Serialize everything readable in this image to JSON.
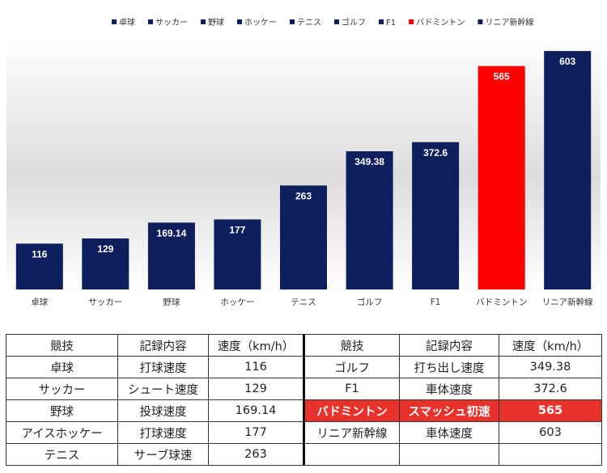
{
  "chart_data": {
    "type": "bar",
    "categories": [
      "卓球",
      "サッカー",
      "野球",
      "ホッケー",
      "テニス",
      "ゴルフ",
      "F1",
      "バドミントン",
      "リニア新幹線"
    ],
    "values": [
      116,
      129,
      169.14,
      177,
      263,
      349.38,
      372.6,
      565,
      603
    ],
    "value_labels": [
      "116",
      "129",
      "169.14",
      "177",
      "263",
      "349.38",
      "372.6",
      "565",
      "603"
    ],
    "legend": [
      "卓球",
      "サッカー",
      "野球",
      "ホッケー",
      "テニス",
      "ゴルフ",
      "F1",
      "バドミントン",
      "リニア新幹線"
    ],
    "legend_position": "top",
    "colors": [
      "#0d1f5c",
      "#0d1f5c",
      "#0d1f5c",
      "#0d1f5c",
      "#0d1f5c",
      "#0d1f5c",
      "#0d1f5c",
      "#ff0000",
      "#0d1f5c"
    ],
    "highlight_color": "#ff0000",
    "bar_color": "#0d1f5c",
    "title": "",
    "xlabel": "",
    "ylabel": "",
    "ylim": [
      0,
      640
    ],
    "grid": false
  },
  "table": {
    "headers": [
      "競技",
      "記録内容",
      "速度（km/h）"
    ],
    "left_rows": [
      [
        "卓球",
        "打球速度",
        "116"
      ],
      [
        "サッカー",
        "シュート速度",
        "129"
      ],
      [
        "野球",
        "投球速度",
        "169.14"
      ],
      [
        "アイスホッケー",
        "打球速度",
        "177"
      ],
      [
        "テニス",
        "サーブ球速",
        "263"
      ]
    ],
    "right_rows": [
      [
        "ゴルフ",
        "打ち出し速度",
        "349.38"
      ],
      [
        "F1",
        "車体速度",
        "372.6"
      ],
      [
        "バドミントン",
        "スマッシュ初速",
        "565"
      ],
      [
        "リニア新幹線",
        "車体速度",
        "603"
      ],
      [
        "",
        "",
        ""
      ]
    ],
    "highlight_color": "#e8322b"
  }
}
